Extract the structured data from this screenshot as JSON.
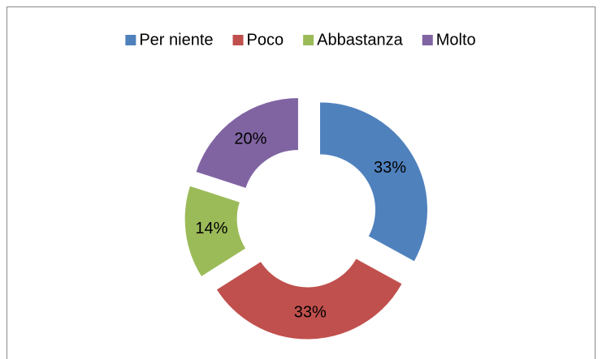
{
  "chart_data": {
    "type": "donut",
    "categories": [
      "Per niente",
      "Poco",
      "Abbastanza",
      "Molto"
    ],
    "values": [
      33,
      33,
      14,
      20
    ],
    "value_labels": [
      "33%",
      "33%",
      "14%",
      "20%"
    ],
    "colors": [
      "#4f81bd",
      "#c0504d",
      "#9bbb59",
      "#8064a2"
    ],
    "legend": "top"
  }
}
